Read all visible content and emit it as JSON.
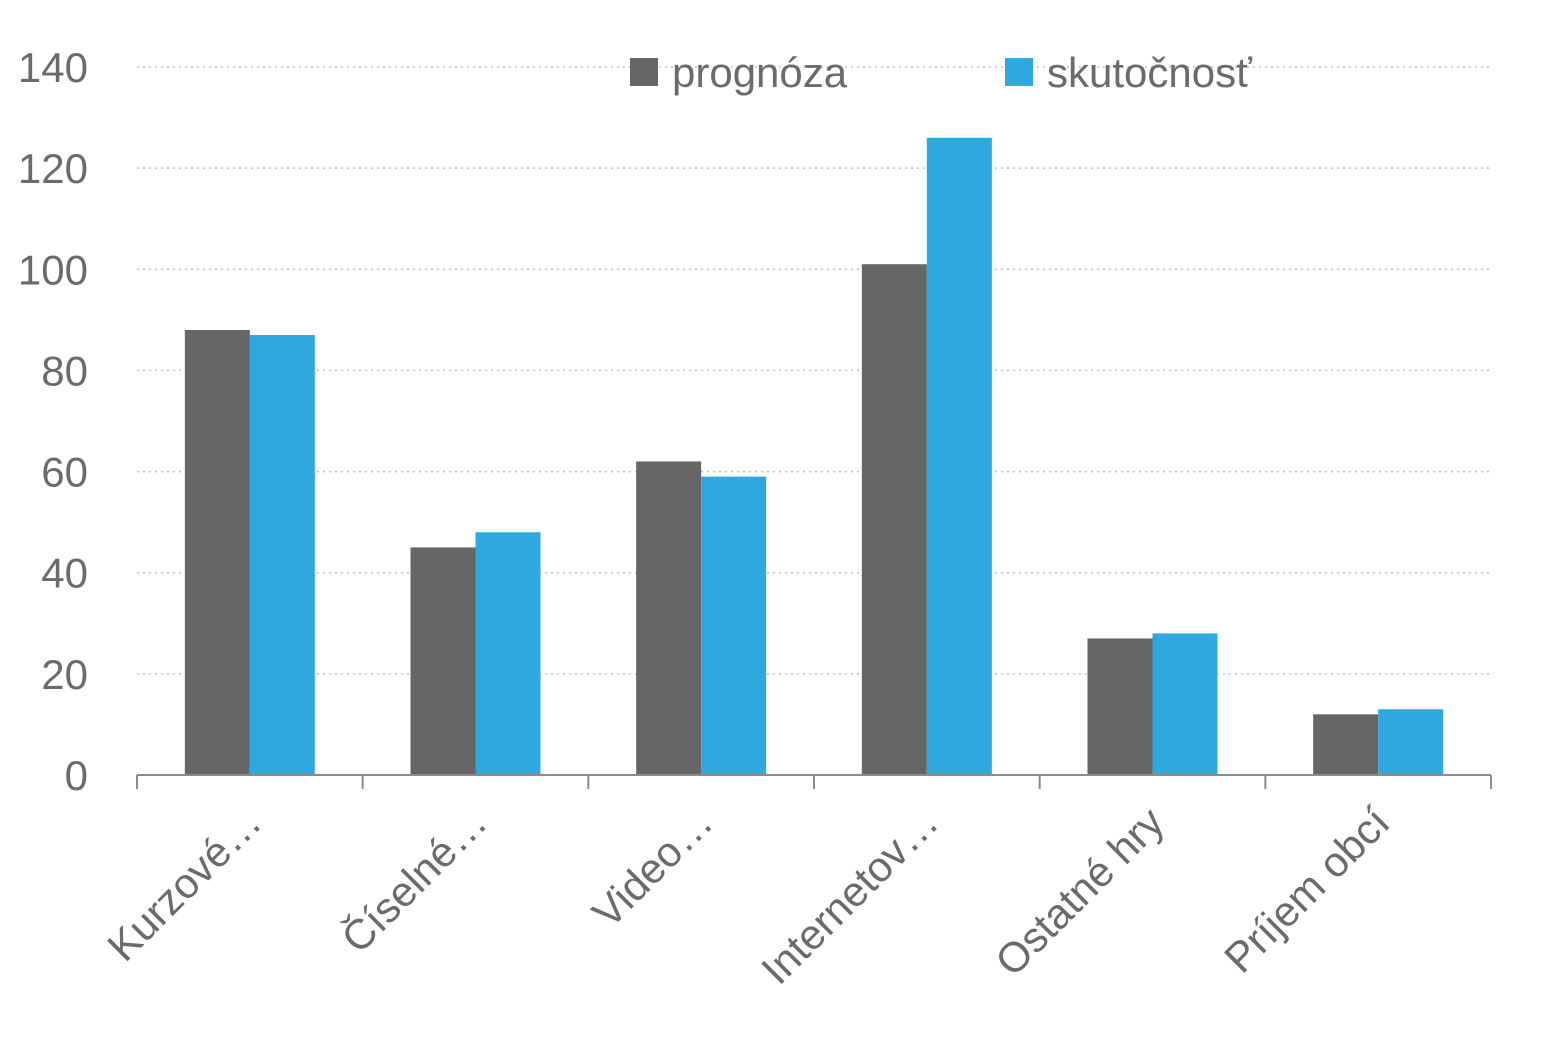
{
  "chart_data": {
    "type": "bar",
    "categories": [
      "Kurzové…",
      "Číselné…",
      "Video…",
      "Internetov…",
      "Ostatné hry",
      "Príjem obcí"
    ],
    "series": [
      {
        "name": "prognóza",
        "color": "#666666",
        "values": [
          88,
          45,
          62,
          101,
          27,
          12
        ]
      },
      {
        "name": "skutočnosť",
        "color": "#2ea8df",
        "values": [
          87,
          48,
          59,
          126,
          28,
          13
        ]
      }
    ],
    "ylim": [
      0,
      140
    ],
    "yticks": [
      0,
      20,
      40,
      60,
      80,
      100,
      120,
      140
    ],
    "grid": true,
    "legend_position": "top-center"
  }
}
